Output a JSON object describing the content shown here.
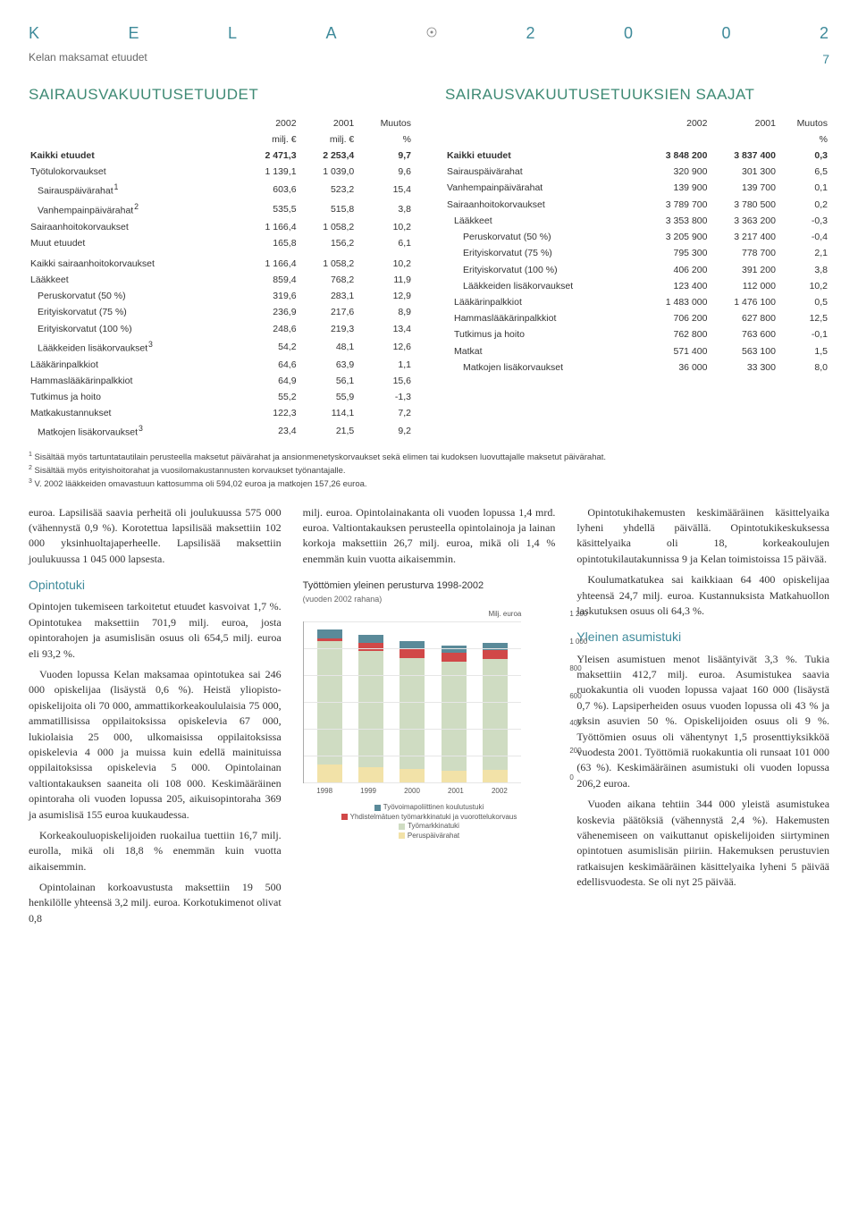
{
  "header": {
    "letters": [
      "K",
      "E",
      "L",
      "A",
      "2",
      "0",
      "0",
      "2"
    ],
    "subtitle": "Kelan maksamat etuudet",
    "page": "7"
  },
  "tableA": {
    "title": "SAIRAUSVAKUUTUSETUUDET",
    "head": [
      "",
      "2002",
      "2001",
      "Muutos"
    ],
    "subhead": [
      "",
      "milj. €",
      "milj. €",
      "%"
    ],
    "rows": [
      {
        "label": "Kaikki etuudet",
        "v": [
          "2 471,3",
          "2 253,4",
          "9,7"
        ],
        "bold": true
      },
      {
        "label": "Työtulokorvaukset",
        "v": [
          "1 139,1",
          "1 039,0",
          "9,6"
        ]
      },
      {
        "label": "Sairauspäivärahat",
        "sup": "1",
        "v": [
          "603,6",
          "523,2",
          "15,4"
        ],
        "ind": 1
      },
      {
        "label": "Vanhempainpäivärahat",
        "sup": "2",
        "v": [
          "535,5",
          "515,8",
          "3,8"
        ],
        "ind": 1
      },
      {
        "label": "Sairaanhoitokorvaukset",
        "v": [
          "1 166,4",
          "1 058,2",
          "10,2"
        ]
      },
      {
        "label": "Muut etuudet",
        "v": [
          "165,8",
          "156,2",
          "6,1"
        ]
      }
    ],
    "rows2": [
      {
        "label": "Kaikki sairaanhoitokorvaukset",
        "v": [
          "1 166,4",
          "1 058,2",
          "10,2"
        ]
      },
      {
        "label": "Lääkkeet",
        "v": [
          "859,4",
          "768,2",
          "11,9"
        ]
      },
      {
        "label": "Peruskorvatut (50 %)",
        "v": [
          "319,6",
          "283,1",
          "12,9"
        ],
        "ind": 1
      },
      {
        "label": "Erityiskorvatut (75 %)",
        "v": [
          "236,9",
          "217,6",
          "8,9"
        ],
        "ind": 1
      },
      {
        "label": "Erityiskorvatut (100 %)",
        "v": [
          "248,6",
          "219,3",
          "13,4"
        ],
        "ind": 1
      },
      {
        "label": "Lääkkeiden lisäkorvaukset",
        "sup": "3",
        "v": [
          "54,2",
          "48,1",
          "12,6"
        ],
        "ind": 1
      },
      {
        "label": "Lääkärinpalkkiot",
        "v": [
          "64,6",
          "63,9",
          "1,1"
        ]
      },
      {
        "label": "Hammaslääkärinpalkkiot",
        "v": [
          "64,9",
          "56,1",
          "15,6"
        ]
      },
      {
        "label": "Tutkimus ja hoito",
        "v": [
          "55,2",
          "55,9",
          "-1,3"
        ]
      },
      {
        "label": "Matkakustannukset",
        "v": [
          "122,3",
          "114,1",
          "7,2"
        ]
      },
      {
        "label": "Matkojen lisäkorvaukset",
        "sup": "3",
        "v": [
          "23,4",
          "21,5",
          "9,2"
        ],
        "ind": 1
      }
    ]
  },
  "tableB": {
    "title": "SAIRAUSVAKUUTUSETUUKSIEN SAAJAT",
    "head": [
      "",
      "2002",
      "2001",
      "Muutos"
    ],
    "subhead": [
      "",
      "",
      "",
      "%"
    ],
    "rows": [
      {
        "label": "Kaikki etuudet",
        "v": [
          "3 848 200",
          "3 837 400",
          "0,3"
        ],
        "bold": true
      },
      {
        "label": "Sairauspäivärahat",
        "v": [
          "320 900",
          "301 300",
          "6,5"
        ]
      },
      {
        "label": "Vanhempainpäivärahat",
        "v": [
          "139 900",
          "139 700",
          "0,1"
        ]
      },
      {
        "label": "Sairaanhoitokorvaukset",
        "v": [
          "3 789 700",
          "3 780 500",
          "0,2"
        ]
      },
      {
        "label": "Lääkkeet",
        "v": [
          "3 353 800",
          "3 363 200",
          "-0,3"
        ],
        "ind": 1
      },
      {
        "label": "Peruskorvatut (50 %)",
        "v": [
          "3 205 900",
          "3 217 400",
          "-0,4"
        ],
        "ind": 2
      },
      {
        "label": "Erityiskorvatut (75 %)",
        "v": [
          "795 300",
          "778 700",
          "2,1"
        ],
        "ind": 2
      },
      {
        "label": "Erityiskorvatut (100 %)",
        "v": [
          "406 200",
          "391 200",
          "3,8"
        ],
        "ind": 2
      },
      {
        "label": "Lääkkeiden lisäkorvaukset",
        "v": [
          "123 400",
          "112 000",
          "10,2"
        ],
        "ind": 2
      },
      {
        "label": "Lääkärinpalkkiot",
        "v": [
          "1 483 000",
          "1 476 100",
          "0,5"
        ],
        "ind": 1
      },
      {
        "label": "Hammaslääkärinpalkkiot",
        "v": [
          "706 200",
          "627 800",
          "12,5"
        ],
        "ind": 1
      },
      {
        "label": "Tutkimus ja hoito",
        "v": [
          "762 800",
          "763 600",
          "-0,1"
        ],
        "ind": 1
      },
      {
        "label": "Matkat",
        "v": [
          "571 400",
          "563 100",
          "1,5"
        ],
        "ind": 1
      },
      {
        "label": "Matkojen lisäkorvaukset",
        "v": [
          "36 000",
          "33 300",
          "8,0"
        ],
        "ind": 2
      }
    ]
  },
  "footnotes": {
    "f1": "Sisältää myös tartuntatautilain perusteella maksetut päivärahat ja ansionmenetyskorvaukset sekä elimen tai kudoksen luovuttajalle maksetut päivärahat.",
    "f2": "Sisältää myös erityishoitorahat ja vuosilomakustannusten korvaukset työnantajalle.",
    "f3": "V. 2002 lääkkeiden omavastuun kattosumma oli 594,02 euroa ja matkojen 157,26 euroa."
  },
  "col1": {
    "p1": "euroa. Lapsilisää saavia perheitä oli joulukuussa 575 000 (vähennystä 0,9 %). Korotettua lapsilisää maksettiin 102 000 yksinhuoltajaperheelle. Lapsilisää maksettiin joulukuussa 1 045 000 lapsesta.",
    "h1": "Opintotuki",
    "p2": "Opintojen tukemiseen tarkoitetut etuudet kasvoivat 1,7 %. Opintotukea maksettiin 701,9 milj. euroa, josta opintorahojen ja asumislisän osuus oli 654,5 milj. euroa eli 93,2 %.",
    "p3": "Vuoden lopussa Kelan maksamaa opintotukea sai 246 000 opiskelijaa (lisäystä 0,6 %). Heistä yliopisto-opiskelijoita oli 70 000, ammattikorkeakoululaisia 75 000, ammatillisissa oppilaitoksissa opiskelevia 67 000, lukiolaisia 25 000, ulkomaisissa oppilaitoksissa opiskelevia 4 000 ja muissa kuin edellä mainituissa oppilaitoksissa opiskelevia 5 000. Opintolainan valtiontakauksen saaneita oli 108 000. Keskimääräinen opintoraha oli vuoden lopussa 205, aikuisopintoraha 369 ja asumislisä 155 euroa kuukaudessa.",
    "p4": "Korkeakouluopiskelijoiden ruokailua tuettiin 16,7 milj. eurolla, mikä oli 18,8 % enemmän kuin vuotta aikaisemmin.",
    "p5": "Opintolainan korkoavustusta maksettiin 19 500 henkilölle yhteensä 3,2 milj. euroa. Korkotukimenot olivat 0,8"
  },
  "col2": {
    "p1": "milj. euroa. Opintolainakanta oli vuoden lopussa 1,4 mrd. euroa. Valtiontakauksen perusteella opintolainoja ja lainan korkoja maksettiin 26,7 milj. euroa, mikä oli 1,4 % enemmän kuin vuotta aikaisemmin."
  },
  "col3": {
    "p1": "Opintotukihakemusten keskimääräinen käsittelyaika lyheni yhdellä päivällä. Opintotukikeskuksessa käsittelyaika oli 18, korkeakoulujen opintotukilautakunnissa 9 ja Kelan toimistoissa 15 päivää.",
    "p2": "Koulumatkatukea sai kaikkiaan 64 400 opiskelijaa yhteensä 24,7 milj. euroa. Kustannuksista Matkahuollon laskutuksen osuus oli 64,3 %.",
    "h1": "Yleinen asumistuki",
    "p3": "Yleisen asumistuen menot lisääntyivät 3,3 %. Tukia maksettiin 412,7 milj. euroa. Asumistukea saavia ruokakuntia oli vuoden lopussa vajaat 160 000 (lisäystä 0,7 %). Lapsiperheiden osuus vuoden lopussa oli 43 % ja yksin asuvien 50 %. Opiskelijoiden osuus oli 9 %. Työttömien osuus oli vähentynyt 1,5 prosenttiyksikköä vuodesta 2001. Työttömiä ruokakuntia oli runsaat 101 000 (63 %). Keskimääräinen asumistuki oli vuoden lopussa 206,2 euroa.",
    "p4": "Vuoden aikana tehtiin 344 000 yleistä asumistukea koskevia päätöksiä (vähennystä 2,4 %). Hakemusten vähenemiseen on vaikuttanut opiskelijoiden siirtyminen opintotuen asumislisän piiriin. Hakemuksen perustuvien ratkaisujen keskimääräinen käsittelyaika lyheni 5 päivää edellisvuodesta. Se oli nyt 25 päivää."
  },
  "chart": {
    "title": "Työttömien yleinen perusturva 1998-2002",
    "subtitle": "(vuoden 2002 rahana)",
    "ylabel_top": "Milj. euroa",
    "ymax": 1200,
    "yticks": [
      "1 200",
      "1 000",
      "800",
      "600",
      "400",
      "200",
      "0"
    ],
    "years": [
      "1998",
      "1999",
      "2000",
      "2001",
      "2002"
    ],
    "series": {
      "tyovoima": {
        "label": "Työvoimapoliittinen koulutustuki",
        "color": "#5a8a99",
        "values": [
          65,
          60,
          60,
          55,
          50
        ]
      },
      "yhdist": {
        "label": "Yhdistelmätuen työmarkkinatuki ja vuorottelukorvaus",
        "color": "#d14848",
        "values": [
          20,
          55,
          65,
          70,
          65
        ]
      },
      "tmtuki": {
        "label": "Työmarkkinatuki",
        "color": "#cfdcc2",
        "values": [
          920,
          870,
          830,
          810,
          830
        ]
      },
      "paivar": {
        "label": "Peruspäivärahat",
        "color": "#f2e2a8",
        "values": [
          130,
          110,
          95,
          85,
          90
        ]
      }
    },
    "background": "#ffffff",
    "gridcolor": "#e6e6e6"
  }
}
